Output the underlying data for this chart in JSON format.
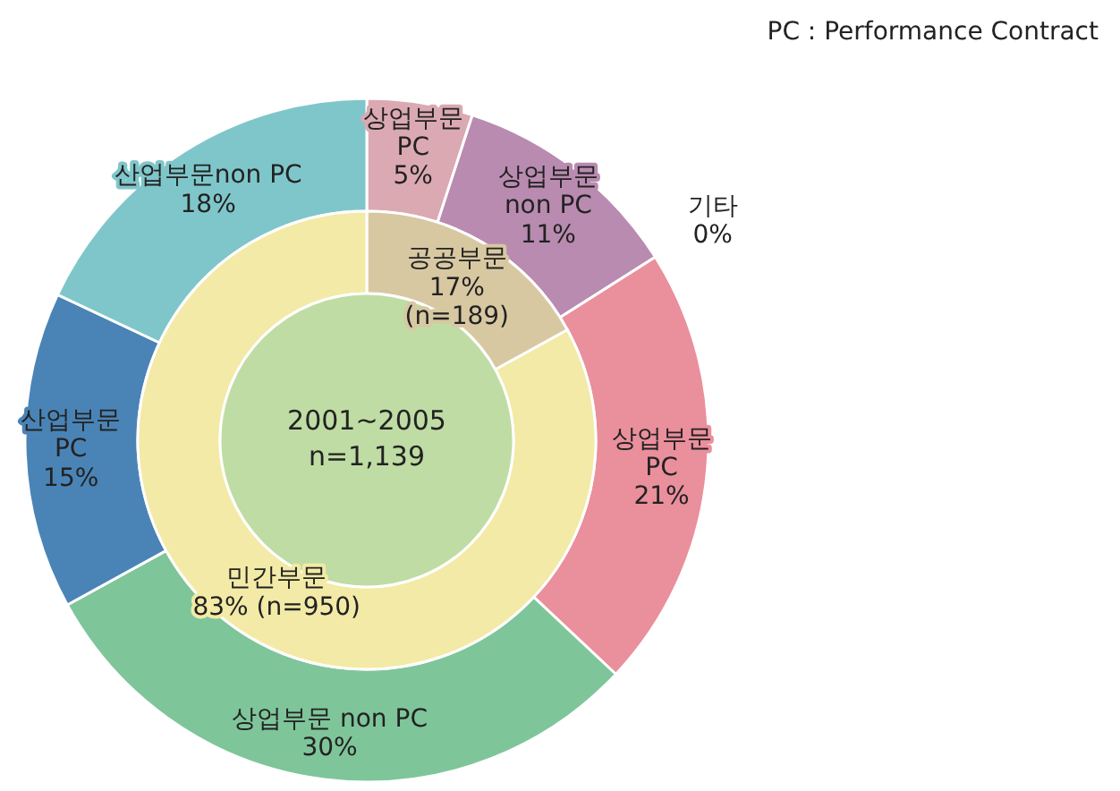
{
  "chart_data": [
    {
      "type": "donut",
      "categories": [
        "상업부문\nPC",
        "상업부문\nnon PC",
        "기타",
        "상업부문\nPC",
        "상업부문 non PC",
        "산업부문\nPC",
        "산업부문non PC"
      ],
      "values": [
        5,
        11,
        0,
        21,
        30,
        15,
        18
      ],
      "value_labels": [
        "5%",
        "11%",
        "0%",
        "21%",
        "30%",
        "15%",
        "18%"
      ],
      "colors": [
        "#dba9b2",
        "#b98bb0",
        "#cccccc",
        "#ea8f9c",
        "#7fc59a",
        "#4a84b6",
        "#7fc6ca"
      ],
      "annotations": [
        "PC : Performance Contract"
      ]
    },
    {
      "type": "donut",
      "title": "2001~2005",
      "subtitle": "n=1,139",
      "categories": [
        "공공부문",
        "민간부문"
      ],
      "values": [
        17,
        83
      ],
      "value_labels": [
        "17%\n(n=189)",
        "83%  (n=950)"
      ],
      "colors": [
        "#d8c8a2",
        "#f2eaa6"
      ]
    }
  ]
}
